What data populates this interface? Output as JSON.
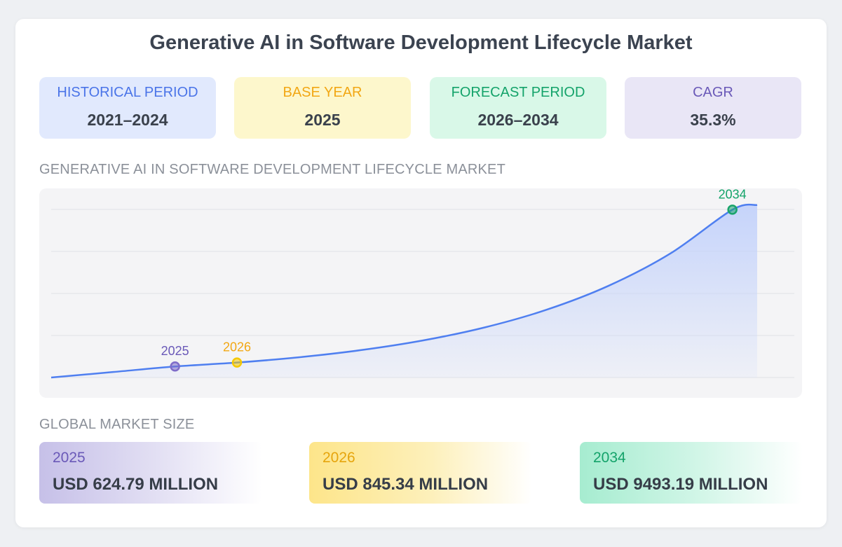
{
  "title": "Generative AI in Software Development Lifecycle Market",
  "stats": [
    {
      "label": "HISTORICAL PERIOD",
      "value": "2021–2024"
    },
    {
      "label": "BASE YEAR",
      "value": "2025"
    },
    {
      "label": "FORECAST PERIOD",
      "value": "2026–2034"
    },
    {
      "label": "CAGR",
      "value": "35.3%"
    }
  ],
  "chart_section_label": "GENERATIVE AI IN SOFTWARE DEVELOPMENT LIFECYCLE MARKET",
  "market_size_label": "GLOBAL MARKET SIZE",
  "market_sizes": [
    {
      "year": "2025",
      "amount": "USD 624.79 MILLION"
    },
    {
      "year": "2026",
      "amount": "USD 845.34 MILLION"
    },
    {
      "year": "2034",
      "amount": "USD 9493.19 MILLION"
    }
  ],
  "colors": {
    "line": "#4f7ff0",
    "area_top": "#c3d2fb",
    "marker_2025": "#7f6cc9",
    "marker_2026": "#f5c800",
    "marker_2034": "#19a46b",
    "label_2025": "#6a59b8",
    "label_2026": "#f2a714",
    "label_2034": "#14a36a"
  },
  "chart_data": {
    "type": "area",
    "title": "",
    "xlabel": "",
    "ylabel": "",
    "xlim": [
      2023,
      2035
    ],
    "ylim": [
      0,
      10300
    ],
    "grid": true,
    "x": [
      2023,
      2024,
      2025,
      2026,
      2027,
      2028,
      2029,
      2030,
      2031,
      2032,
      2033,
      2034,
      2034.4
    ],
    "values": [
      0,
      310,
      624.79,
      845.34,
      1144,
      1548,
      2094,
      2833,
      3834,
      5187,
      7018,
      9493.19,
      9760
    ],
    "highlighted_points": [
      {
        "x": 2025,
        "y": 624.79,
        "label": "2025"
      },
      {
        "x": 2026,
        "y": 845.34,
        "label": "2026"
      },
      {
        "x": 2034,
        "y": 9493.19,
        "label": "2034"
      }
    ]
  }
}
